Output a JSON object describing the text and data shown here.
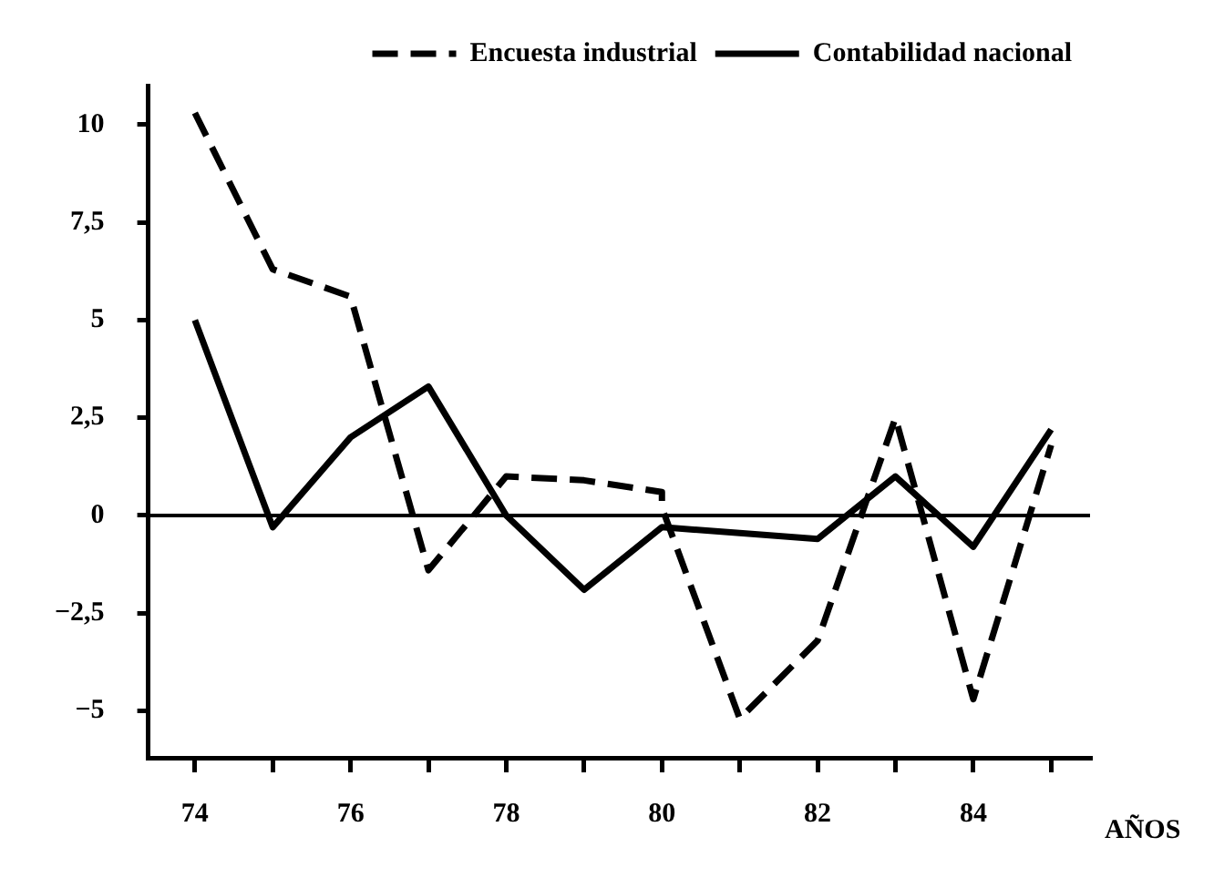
{
  "chart_data": {
    "type": "line",
    "xlabel": "AÑOS",
    "xlim": [
      73.4,
      85.5
    ],
    "xticks": [
      74,
      {
        "value": 75,
        "label": null
      },
      76,
      {
        "value": 77,
        "label": null
      },
      78,
      {
        "value": 79,
        "label": null
      },
      80,
      {
        "value": 81,
        "label": null
      },
      82,
      {
        "value": 83,
        "label": null
      },
      84,
      {
        "value": 85,
        "label": null
      }
    ],
    "ylim": [
      -6.2,
      11
    ],
    "yticks": [
      {
        "value": -5,
        "label": "−5"
      },
      {
        "value": -2.5,
        "label": "−2,5"
      },
      0,
      {
        "value": 2.5,
        "label": "2,5"
      },
      5,
      {
        "value": 7.5,
        "label": "7,5"
      },
      10
    ],
    "series": [
      {
        "name": "Encuesta industrial",
        "color": "#000000",
        "line_style": "dashed",
        "x": [
          74,
          75,
          76,
          77,
          78,
          79,
          80,
          80,
          81,
          82,
          83,
          84,
          85
        ],
        "values": [
          10.3,
          6.3,
          5.6,
          -1.4,
          1.0,
          0.9,
          0.6,
          0.2,
          -5.2,
          -3.2,
          2.5,
          -4.7,
          1.8
        ]
      },
      {
        "name": "Contabilidad nacional",
        "color": "#000000",
        "line_style": "solid",
        "x": [
          74,
          75,
          76,
          77,
          78,
          79,
          80,
          81,
          82,
          83,
          84,
          85
        ],
        "values": [
          5.0,
          -0.3,
          2.0,
          3.3,
          0.0,
          -1.9,
          -0.3,
          -0.45,
          -0.6,
          1.0,
          -0.8,
          2.2
        ]
      }
    ],
    "ref_lines": [
      {
        "axis": "y",
        "value": 0,
        "color": "#000000"
      }
    ],
    "grid": false,
    "legend": "top right",
    "marker": "none"
  }
}
